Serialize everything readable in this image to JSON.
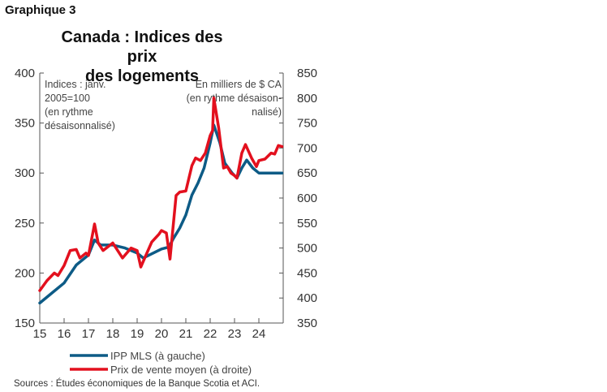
{
  "figure_label": "Graphique 3",
  "chart_data": {
    "type": "line",
    "title": "Canada : Indices des prix des logements",
    "title_lines": [
      "Canada : Indices des prix",
      "des logements"
    ],
    "left_axis_note": [
      "Indices : janv.",
      "2005=100",
      "(en rythme",
      "désaisonnalisé)"
    ],
    "right_axis_note": [
      "En milliers de $ CA",
      "(en rythme désaison-",
      "nalisé)"
    ],
    "xlim": [
      2015,
      2025
    ],
    "x_ticks": [
      2015,
      2016,
      2017,
      2018,
      2019,
      2020,
      2021,
      2022,
      2023,
      2024
    ],
    "x_tick_labels": [
      "15",
      "16",
      "17",
      "18",
      "19",
      "20",
      "21",
      "22",
      "23",
      "24"
    ],
    "ylim_left": [
      150,
      400
    ],
    "y_ticks_left": [
      "150",
      "200",
      "250",
      "300",
      "350",
      "400"
    ],
    "ylim_right": [
      350,
      850
    ],
    "y_ticks_right": [
      "350",
      "400",
      "450",
      "500",
      "550",
      "600",
      "650",
      "700",
      "750",
      "800",
      "850"
    ],
    "grid": false,
    "legend_placement": "bottom",
    "series": [
      {
        "name": "IPP MLS (à gauche)",
        "axis": "left",
        "color": "#0d5b86",
        "x": [
          2015,
          2015.5,
          2016,
          2016.5,
          2017,
          2017.25,
          2017.5,
          2018,
          2018.5,
          2019,
          2019.25,
          2019.5,
          2020,
          2020.3,
          2020.5,
          2020.75,
          2021,
          2021.25,
          2021.5,
          2021.75,
          2022,
          2022.15,
          2022.4,
          2022.6,
          2022.9,
          2023.1,
          2023.3,
          2023.5,
          2023.75,
          2024,
          2024.5,
          2024.95
        ],
        "y": [
          170,
          180,
          190,
          208,
          218,
          233,
          228,
          228,
          225,
          220,
          215,
          218,
          224,
          226,
          235,
          245,
          258,
          278,
          290,
          305,
          330,
          348,
          330,
          310,
          300,
          295,
          305,
          313,
          305,
          300,
          300,
          300
        ]
      },
      {
        "name": "Prix de vente moyen (à droite)",
        "axis": "right",
        "color": "#e3101e",
        "x": [
          2015,
          2015.3,
          2015.6,
          2015.75,
          2016,
          2016.25,
          2016.5,
          2016.65,
          2016.9,
          2017,
          2017.25,
          2017.4,
          2017.6,
          2018,
          2018.4,
          2018.75,
          2019,
          2019.15,
          2019.4,
          2019.6,
          2019.9,
          2020,
          2020.2,
          2020.35,
          2020.6,
          2020.75,
          2021,
          2021.25,
          2021.4,
          2021.6,
          2021.8,
          2022,
          2022.1,
          2022.15,
          2022.35,
          2022.55,
          2022.7,
          2022.85,
          2023,
          2023.1,
          2023.3,
          2023.45,
          2023.7,
          2023.9,
          2024,
          2024.25,
          2024.5,
          2024.65,
          2024.8,
          2024.95
        ],
        "y": [
          415,
          435,
          450,
          445,
          465,
          495,
          497,
          480,
          490,
          485,
          548,
          510,
          495,
          510,
          480,
          500,
          495,
          462,
          490,
          512,
          528,
          535,
          530,
          478,
          605,
          612,
          614,
          665,
          680,
          675,
          690,
          725,
          735,
          800,
          740,
          660,
          663,
          650,
          645,
          640,
          690,
          707,
          680,
          663,
          675,
          678,
          690,
          688,
          705,
          703
        ]
      }
    ]
  },
  "source": "Sources : Études économiques de la Banque Scotia et ACI."
}
